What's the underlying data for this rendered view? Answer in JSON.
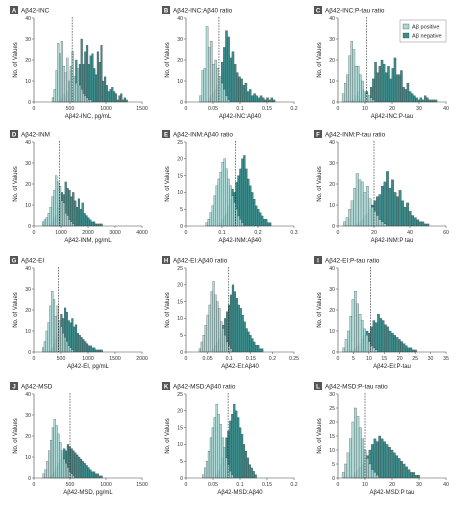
{
  "colors": {
    "positive": "#a7d6d3",
    "negative": "#3d8b8a",
    "edge": "#333333",
    "axis": "#444444",
    "letter_bg": "#555555"
  },
  "legend": {
    "positive": "Aβ positive",
    "negative": "Aβ negative"
  },
  "chart_data": [
    {
      "letter": "A",
      "title": "Aβ42-INC",
      "xlabel": "Aβ42-INC, pg/mL",
      "ylabel": "No. of Values",
      "type": "bar",
      "xlim": [
        0,
        1500
      ],
      "ylim": [
        0,
        40
      ],
      "xticks": [
        0,
        500,
        1000,
        1500
      ],
      "yticks": [
        0,
        10,
        20,
        30,
        40
      ],
      "cutoff": 530,
      "bin_start": 250,
      "bin_width": 25,
      "series": [
        {
          "name": "Aβ positive",
          "values": [
            2,
            6,
            15,
            28,
            23,
            29,
            17,
            14,
            21,
            10,
            17,
            24,
            12,
            9,
            16,
            8,
            6,
            4,
            3,
            2,
            1,
            1
          ]
        },
        {
          "name": "Aβ negative",
          "values": [
            0,
            0,
            0,
            0,
            1,
            2,
            4,
            3,
            5,
            9,
            15,
            4,
            12,
            20,
            15,
            18,
            30,
            18,
            24,
            27,
            18,
            22,
            23,
            16,
            13,
            24,
            19,
            27,
            10,
            12,
            8,
            5,
            6,
            7,
            5,
            4,
            1,
            3,
            4,
            1,
            2,
            1
          ]
        }
      ]
    },
    {
      "letter": "B",
      "title": "Aβ42-INC:Aβ40 ratio",
      "xlabel": "Aβ42-INC:Aβ40",
      "ylabel": "No. of Values",
      "type": "bar",
      "xlim": [
        0,
        0.2
      ],
      "ylim": [
        0,
        40
      ],
      "xticks": [
        0,
        0.05,
        0.1,
        0.15,
        0.2
      ],
      "yticks": [
        0,
        10,
        20,
        30,
        40
      ],
      "cutoff": 0.061,
      "bin_start": 0.025,
      "bin_width": 0.004,
      "series": [
        {
          "name": "Aβ positive",
          "values": [
            3,
            15,
            16,
            36,
            26,
            29,
            18,
            20,
            16,
            12,
            9,
            6,
            3,
            1
          ]
        },
        {
          "name": "Aβ negative",
          "values": [
            0,
            0,
            0,
            0,
            2,
            3,
            5,
            6,
            8,
            12,
            19,
            26,
            34,
            31,
            21,
            24,
            18,
            14,
            12,
            11,
            8,
            9,
            5,
            6,
            3,
            4,
            3,
            2,
            3,
            2,
            1,
            2,
            1,
            2,
            1
          ]
        }
      ]
    },
    {
      "letter": "C",
      "title": "Aβ42-INC:P-tau ratio",
      "xlabel": "Aβ42-INC:P-tau",
      "ylabel": "No. of Values",
      "type": "bar",
      "xlim": [
        0,
        40
      ],
      "ylim": [
        0,
        40
      ],
      "xticks": [
        0,
        10,
        20,
        30,
        40
      ],
      "yticks": [
        0,
        10,
        20,
        30,
        40
      ],
      "cutoff": 10.5,
      "bin_start": 1.5,
      "bin_width": 0.8,
      "series": [
        {
          "name": "Aβ positive",
          "values": [
            4,
            9,
            13,
            22,
            29,
            25,
            17,
            17,
            13,
            10,
            5,
            4,
            3,
            2,
            1
          ]
        },
        {
          "name": "Aβ negative",
          "values": [
            0,
            0,
            0,
            0,
            1,
            1,
            3,
            5,
            2,
            6,
            4,
            5,
            3,
            7,
            11,
            19,
            14,
            17,
            20,
            18,
            14,
            17,
            11,
            16,
            21,
            13,
            13,
            15,
            7,
            6,
            9,
            5,
            4,
            3,
            2,
            1,
            2,
            1,
            3,
            2,
            1,
            1,
            1,
            1
          ]
        }
      ]
    },
    {
      "letter": "D",
      "title": "Aβ42-INM",
      "xlabel": "Aβ42-INM, pg/mL",
      "ylabel": "No. of Values",
      "type": "bar",
      "xlim": [
        0,
        4000
      ],
      "ylim": [
        0,
        40
      ],
      "xticks": [
        0,
        1000,
        2000,
        3000,
        4000
      ],
      "yticks": [
        0,
        10,
        20,
        30,
        40
      ],
      "cutoff": 950,
      "bin_start": 300,
      "bin_width": 70,
      "series": [
        {
          "name": "Aβ positive",
          "values": [
            2,
            3,
            4,
            6,
            9,
            14,
            17,
            24,
            21,
            19,
            12,
            11,
            6,
            5,
            3,
            2,
            1
          ]
        },
        {
          "name": "Aβ negative",
          "values": [
            0,
            0,
            0,
            0,
            1,
            2,
            4,
            5,
            9,
            12,
            16,
            15,
            21,
            18,
            17,
            14,
            16,
            12,
            9,
            13,
            8,
            11,
            6,
            5,
            4,
            3,
            2,
            2,
            1,
            1,
            1,
            1
          ]
        }
      ]
    },
    {
      "letter": "E",
      "title": "Aβ42-INM:Aβ40 ratio",
      "xlabel": "Aβ42-INM:Aβ40",
      "ylabel": "No. of Values",
      "type": "bar",
      "xlim": [
        0,
        0.3
      ],
      "ylim": [
        0,
        25
      ],
      "xticks": [
        0,
        0.1,
        0.2,
        0.3
      ],
      "yticks": [
        0,
        5,
        10,
        15,
        20,
        25
      ],
      "cutoff": 0.138,
      "bin_start": 0.055,
      "bin_width": 0.0055,
      "series": [
        {
          "name": "Aβ positive",
          "values": [
            1,
            2,
            4,
            6,
            9,
            12,
            14,
            16,
            19,
            20,
            17,
            14,
            12,
            9,
            7,
            5,
            3,
            2,
            1
          ]
        },
        {
          "name": "Aβ negative",
          "values": [
            0,
            0,
            0,
            0,
            0,
            0,
            0,
            1,
            2,
            3,
            4,
            6,
            8,
            11,
            10,
            13,
            15,
            17,
            20,
            21,
            17,
            14,
            12,
            10,
            8,
            6,
            5,
            4,
            3,
            2,
            2,
            1,
            1
          ]
        }
      ]
    },
    {
      "letter": "F",
      "title": "Aβ42-INM:P-tau ratio",
      "xlabel": "Aβ42-INM:P tau",
      "ylabel": "No. of Values",
      "type": "bar",
      "xlim": [
        0,
        60
      ],
      "ylim": [
        0,
        40
      ],
      "xticks": [
        0,
        20,
        40,
        60
      ],
      "yticks": [
        0,
        10,
        20,
        30,
        40
      ],
      "cutoff": 20,
      "bin_start": 3,
      "bin_width": 1.4,
      "series": [
        {
          "name": "Aβ positive",
          "values": [
            2,
            4,
            8,
            12,
            18,
            25,
            22,
            21,
            16,
            19,
            13,
            9,
            7,
            5,
            3,
            2,
            1
          ]
        },
        {
          "name": "Aβ negative",
          "values": [
            0,
            0,
            0,
            0,
            0,
            1,
            2,
            3,
            5,
            6,
            8,
            10,
            12,
            14,
            15,
            19,
            21,
            26,
            18,
            22,
            16,
            14,
            17,
            12,
            9,
            11,
            7,
            5,
            4,
            3,
            2,
            2,
            1,
            1
          ]
        }
      ]
    },
    {
      "letter": "G",
      "title": "Aβ42-EI",
      "xlabel": "Aβ42-EI, pg/mL",
      "ylabel": "No. of Values",
      "type": "bar",
      "xlim": [
        0,
        2000
      ],
      "ylim": [
        0,
        40
      ],
      "xticks": [
        0,
        500,
        1000,
        1500,
        2000
      ],
      "yticks": [
        0,
        10,
        20,
        30,
        40
      ],
      "cutoff": 450,
      "bin_start": 150,
      "bin_width": 34,
      "series": [
        {
          "name": "Aβ positive",
          "values": [
            2,
            5,
            10,
            14,
            22,
            29,
            25,
            17,
            22,
            15,
            12,
            9,
            7,
            5,
            3,
            2,
            1
          ]
        },
        {
          "name": "Aβ negative",
          "values": [
            0,
            0,
            0,
            0,
            1,
            2,
            4,
            6,
            9,
            12,
            18,
            16,
            21,
            19,
            15,
            14,
            16,
            12,
            13,
            9,
            8,
            7,
            6,
            5,
            4,
            3,
            3,
            2,
            2,
            1,
            1,
            1,
            1
          ]
        }
      ]
    },
    {
      "letter": "H",
      "title": "Aβ42-EI:Aβ40 ratio",
      "xlabel": "Aβ42-EI:Aβ40",
      "ylabel": "No. of Values",
      "type": "bar",
      "xlim": [
        0,
        0.25
      ],
      "ylim": [
        0,
        25
      ],
      "xticks": [
        0,
        0.05,
        0.1,
        0.15,
        0.2,
        0.25
      ],
      "yticks": [
        0,
        5,
        10,
        15,
        20,
        25
      ],
      "cutoff": 0.099,
      "bin_start": 0.03,
      "bin_width": 0.0045,
      "series": [
        {
          "name": "Aβ positive",
          "values": [
            1,
            3,
            5,
            8,
            11,
            14,
            18,
            21,
            17,
            15,
            13,
            9,
            7,
            5,
            3,
            2,
            1
          ]
        },
        {
          "name": "Aβ negative",
          "values": [
            0,
            0,
            0,
            0,
            0,
            0,
            0,
            1,
            2,
            3,
            4,
            6,
            8,
            10,
            12,
            14,
            17,
            20,
            18,
            16,
            14,
            13,
            11,
            9,
            7,
            6,
            5,
            4,
            3,
            2,
            2,
            1,
            1
          ]
        }
      ]
    },
    {
      "letter": "I",
      "title": "Aβ42-EI:P-tau ratio",
      "xlabel": "Aβ42-EI:P-tau",
      "ylabel": "No. of Values",
      "type": "bar",
      "xlim": [
        0,
        35
      ],
      "ylim": [
        0,
        40
      ],
      "xticks": [
        0,
        5,
        10,
        15,
        20,
        25,
        30,
        35
      ],
      "yticks": [
        0,
        10,
        20,
        30,
        40
      ],
      "cutoff": 10.5,
      "bin_start": 1.5,
      "bin_width": 0.75,
      "series": [
        {
          "name": "Aβ positive",
          "values": [
            2,
            6,
            10,
            17,
            25,
            29,
            23,
            18,
            15,
            11,
            8,
            5,
            3,
            2,
            1
          ]
        },
        {
          "name": "Aβ negative",
          "values": [
            0,
            0,
            0,
            0,
            1,
            2,
            3,
            4,
            6,
            8,
            10,
            9,
            12,
            15,
            14,
            18,
            16,
            15,
            13,
            12,
            10,
            9,
            8,
            7,
            6,
            5,
            4,
            3,
            2,
            2,
            1,
            1
          ]
        }
      ]
    },
    {
      "letter": "J",
      "title": "Aβ42-MSD",
      "xlabel": "Aβ42-MSD, pg/mL",
      "ylabel": "No. of Values",
      "type": "bar",
      "xlim": [
        0,
        1500
      ],
      "ylim": [
        0,
        40
      ],
      "xticks": [
        0,
        500,
        1000,
        1500
      ],
      "yticks": [
        0,
        10,
        20,
        30,
        40
      ],
      "cutoff": 500,
      "bin_start": 120,
      "bin_width": 26,
      "series": [
        {
          "name": "Aβ positive",
          "values": [
            2,
            4,
            8,
            13,
            18,
            24,
            28,
            25,
            21,
            17,
            13,
            9,
            7,
            5,
            3,
            2,
            1
          ]
        },
        {
          "name": "Aβ negative",
          "values": [
            0,
            0,
            0,
            0,
            1,
            2,
            3,
            5,
            7,
            9,
            12,
            14,
            13,
            16,
            15,
            14,
            13,
            12,
            11,
            10,
            9,
            8,
            7,
            6,
            5,
            4,
            3,
            3,
            2,
            2,
            1,
            1
          ]
        }
      ]
    },
    {
      "letter": "K",
      "title": "Aβ42-MSD:Aβ40 ratio",
      "xlabel": "Aβ42-MSD:Aβ40",
      "ylabel": "No. of Values",
      "type": "bar",
      "xlim": [
        0,
        0.2
      ],
      "ylim": [
        0,
        25
      ],
      "xticks": [
        0,
        0.05,
        0.1,
        0.15,
        0.2
      ],
      "yticks": [
        0,
        5,
        10,
        15,
        20,
        25
      ],
      "cutoff": 0.078,
      "bin_start": 0.03,
      "bin_width": 0.0036,
      "series": [
        {
          "name": "Aβ positive",
          "values": [
            1,
            3,
            5,
            8,
            12,
            15,
            18,
            22,
            19,
            16,
            12,
            9,
            6,
            4,
            2,
            1
          ]
        },
        {
          "name": "Aβ negative",
          "values": [
            0,
            0,
            0,
            0,
            0,
            0,
            0,
            1,
            2,
            4,
            6,
            9,
            12,
            14,
            17,
            19,
            22,
            20,
            18,
            15,
            13,
            10,
            8,
            6,
            4,
            3,
            2,
            1
          ]
        }
      ]
    },
    {
      "letter": "L",
      "title": "Aβ42-MSD:P-tau ratio",
      "xlabel": "Aβ42-MSD:P tau",
      "ylabel": "No. of Values",
      "type": "bar",
      "xlim": [
        0,
        40
      ],
      "ylim": [
        0,
        30
      ],
      "xticks": [
        0,
        10,
        20,
        30,
        40
      ],
      "yticks": [
        0,
        5,
        10,
        15,
        20,
        25,
        30
      ],
      "cutoff": 10,
      "bin_start": 1.5,
      "bin_width": 0.9,
      "series": [
        {
          "name": "Aβ positive",
          "values": [
            2,
            5,
            9,
            14,
            20,
            25,
            22,
            18,
            14,
            10,
            7,
            5,
            3,
            2,
            1
          ]
        },
        {
          "name": "Aβ negative",
          "values": [
            0,
            0,
            0,
            0,
            1,
            2,
            3,
            4,
            5,
            7,
            8,
            10,
            12,
            14,
            13,
            15,
            14,
            13,
            12,
            11,
            10,
            9,
            8,
            7,
            6,
            5,
            4,
            3,
            2,
            2,
            1,
            1
          ]
        }
      ]
    }
  ]
}
